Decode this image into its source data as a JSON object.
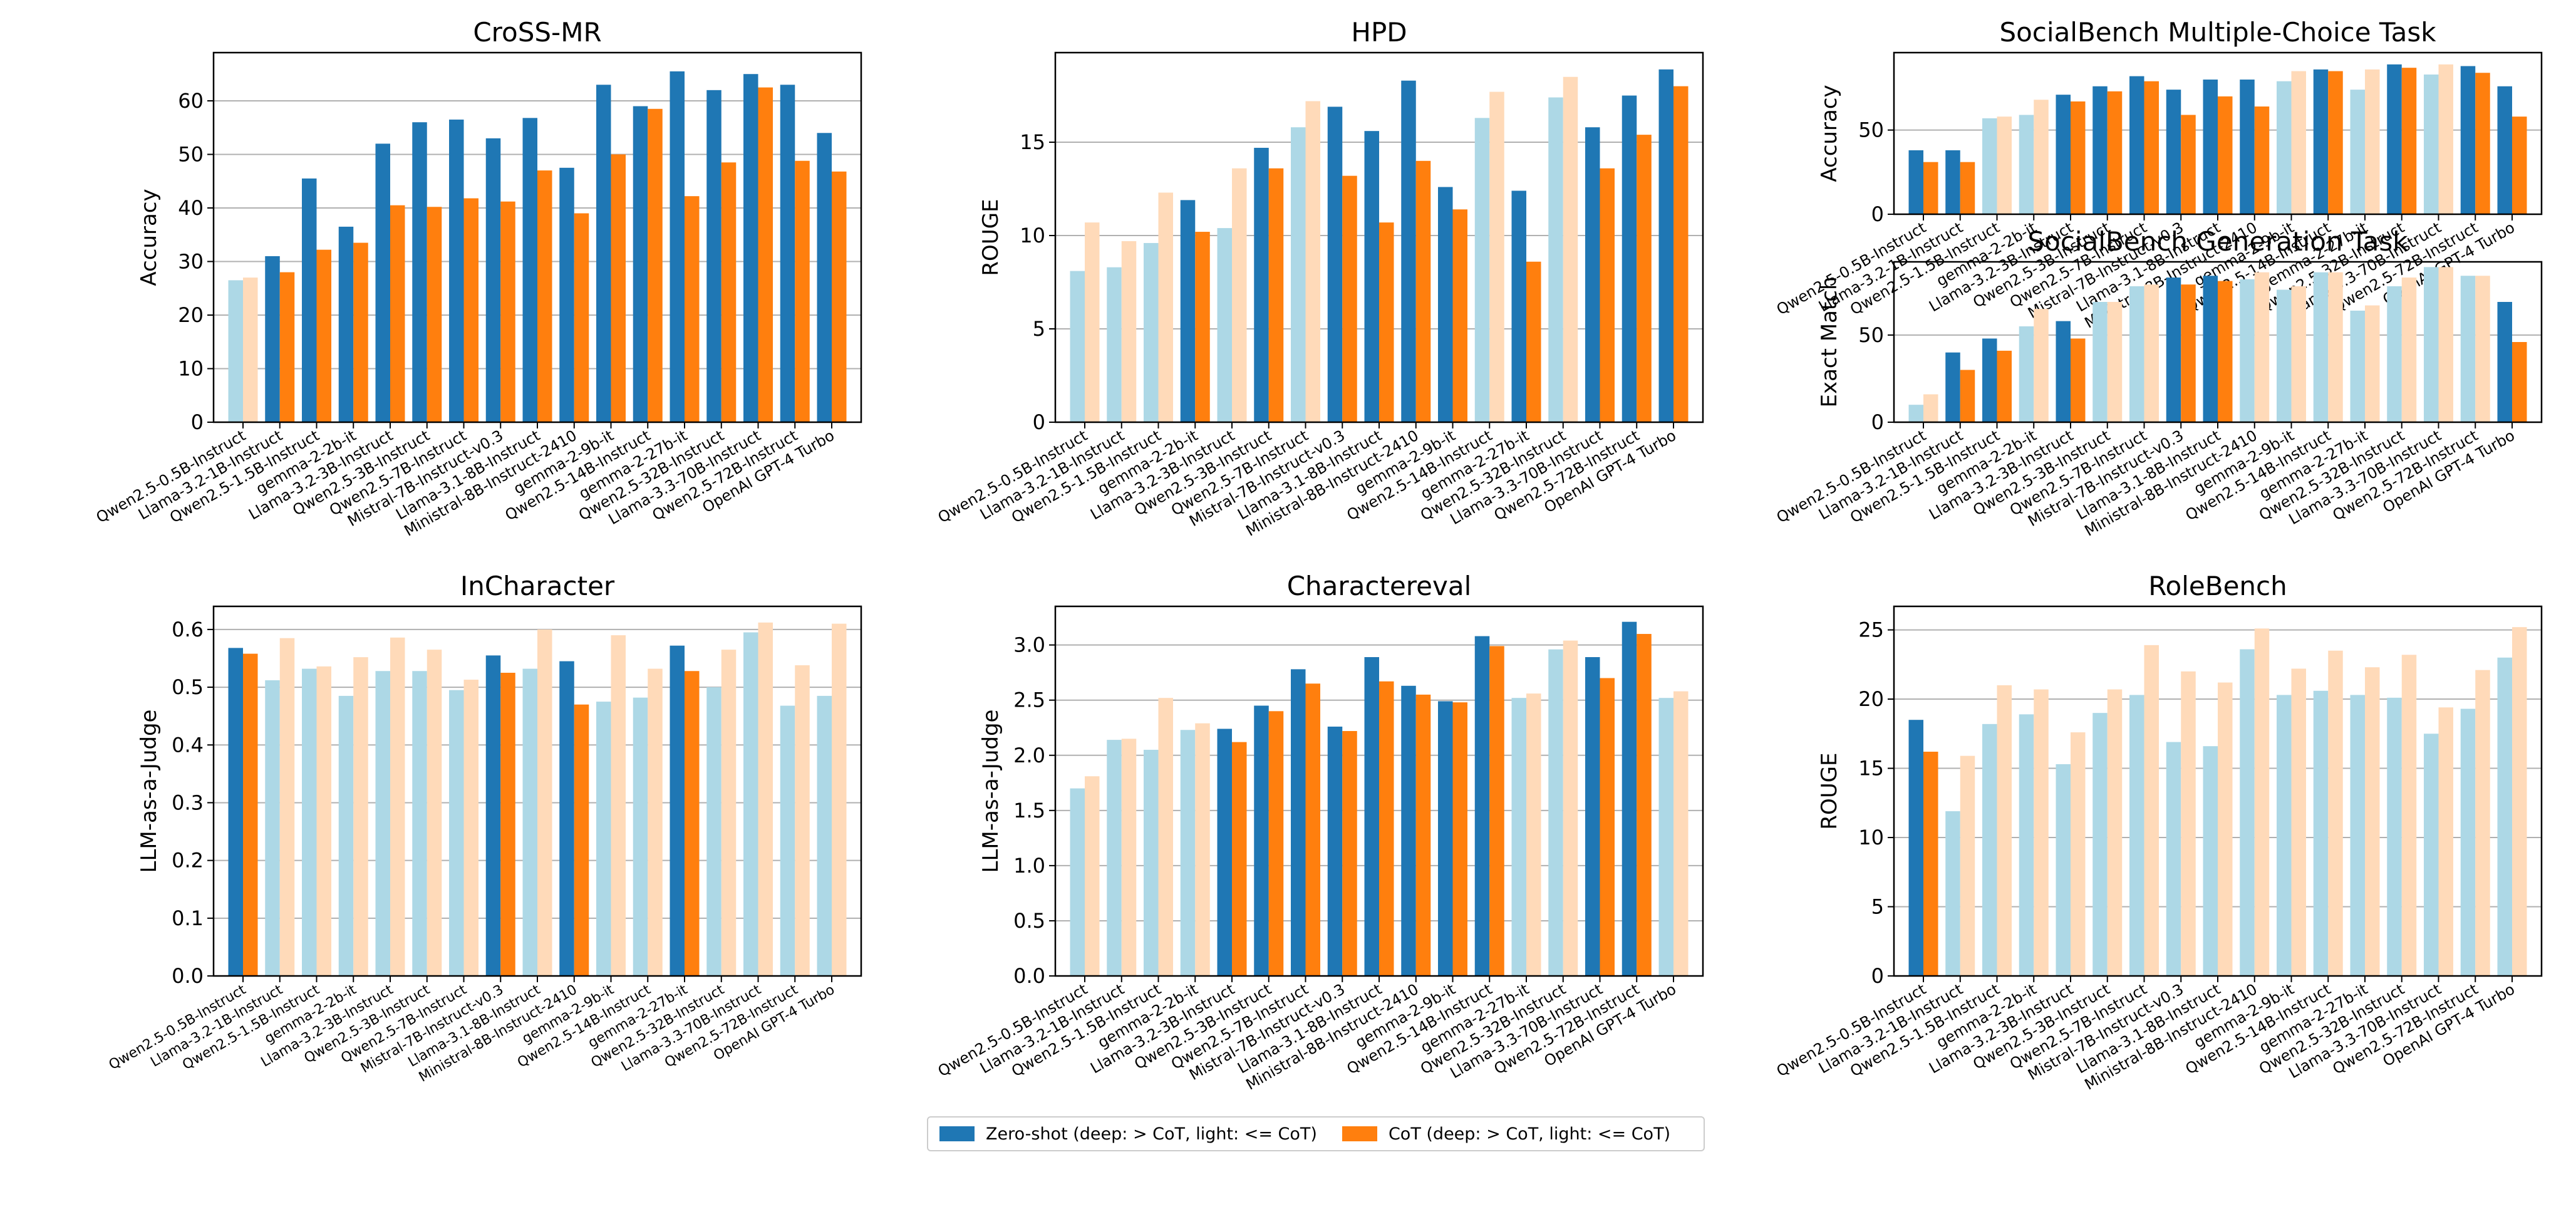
{
  "colors": {
    "zero_deep": "#1f77b4",
    "zero_light": "#add8e6",
    "cot_deep": "#ff7f0e",
    "cot_light": "#ffdab9"
  },
  "legend": {
    "zero_shot": "Zero-shot (deep: > CoT, light: <= CoT)",
    "cot": "CoT (deep: > CoT, light: <= CoT)"
  },
  "chart_data": [
    {
      "id": "cross-mr",
      "type": "bar",
      "title": "CroSS-MR",
      "ylabel": "Accuracy",
      "ylim": [
        0,
        69
      ],
      "yticks": [
        0,
        10,
        20,
        30,
        40,
        50,
        60
      ],
      "grid": true,
      "categories": [
        "Qwen2.5-0.5B-Instruct",
        "Llama-3.2-1B-Instruct",
        "Qwen2.5-1.5B-Instruct",
        "gemma-2-2b-it",
        "Llama-3.2-3B-Instruct",
        "Qwen2.5-3B-Instruct",
        "Qwen2.5-7B-Instruct",
        "Mistral-7B-Instruct-v0.3",
        "Llama-3.1-8B-Instruct",
        "Ministral-8B-Instruct-2410",
        "gemma-2-9b-it",
        "Qwen2.5-14B-Instruct",
        "gemma-2-27b-it",
        "Qwen2.5-32B-Instruct",
        "Llama-3.3-70B-Instruct",
        "Qwen2.5-72B-Instruct",
        "OpenAI GPT-4 Turbo"
      ],
      "series": [
        {
          "name": "Zero-shot",
          "values": [
            26.5,
            31,
            45.5,
            36.5,
            52,
            56,
            56.5,
            53,
            56.8,
            47.5,
            63,
            59,
            65.5,
            62,
            65,
            63,
            54
          ]
        },
        {
          "name": "CoT",
          "values": [
            27,
            28,
            32.2,
            33.5,
            40.5,
            40.2,
            41.8,
            41.2,
            47,
            39,
            50,
            58.5,
            42.2,
            48.5,
            62.5,
            48.8,
            46.8
          ]
        }
      ]
    },
    {
      "id": "hpd",
      "type": "bar",
      "title": "HPD",
      "ylabel": "ROUGE",
      "ylim": [
        0,
        19.8
      ],
      "yticks": [
        0,
        5,
        10,
        15
      ],
      "grid": true,
      "categories": [
        "Qwen2.5-0.5B-Instruct",
        "Llama-3.2-1B-Instruct",
        "Qwen2.5-1.5B-Instruct",
        "gemma-2-2b-it",
        "Llama-3.2-3B-Instruct",
        "Qwen2.5-3B-Instruct",
        "Qwen2.5-7B-Instruct",
        "Mistral-7B-Instruct-v0.3",
        "Llama-3.1-8B-Instruct",
        "Ministral-8B-Instruct-2410",
        "gemma-2-9b-it",
        "Qwen2.5-14B-Instruct",
        "gemma-2-27b-it",
        "Qwen2.5-32B-Instruct",
        "Llama-3.3-70B-Instruct",
        "Qwen2.5-72B-Instruct",
        "OpenAI GPT-4 Turbo"
      ],
      "series": [
        {
          "name": "Zero-shot",
          "values": [
            8.1,
            8.3,
            9.6,
            11.9,
            10.4,
            14.7,
            15.8,
            16.9,
            15.6,
            18.3,
            12.6,
            16.3,
            12.4,
            17.4,
            15.8,
            17.5,
            18.9
          ]
        },
        {
          "name": "CoT",
          "values": [
            10.7,
            9.7,
            12.3,
            10.2,
            13.6,
            13.6,
            17.2,
            13.2,
            10.7,
            14,
            11.4,
            17.7,
            8.6,
            18.5,
            13.6,
            15.4,
            18
          ]
        }
      ]
    },
    {
      "id": "socialbench-mc",
      "type": "bar",
      "title": "SocialBench Multiple-Choice Task",
      "ylabel": "Accuracy",
      "ylim": [
        0,
        96
      ],
      "yticks": [
        0,
        50
      ],
      "grid": true,
      "categories": [
        "Qwen2.5-0.5B-Instruct",
        "Llama-3.2-1B-Instruct",
        "Qwen2.5-1.5B-Instruct",
        "gemma-2-2b-it",
        "Llama-3.2-3B-Instruct",
        "Qwen2.5-3B-Instruct",
        "Qwen2.5-7B-Instruct",
        "Mistral-7B-Instruct-v0.3",
        "Llama-3.1-8B-Instruct",
        "Ministral-8B-Instruct-2410",
        "gemma-2-9b-it",
        "Qwen2.5-14B-Instruct",
        "gemma-2-27b-it",
        "Qwen2.5-32B-Instruct",
        "Llama-3.3-70B-Instruct",
        "Qwen2.5-72B-Instruct",
        "OpenAI GPT-4 Turbo"
      ],
      "series": [
        {
          "name": "Zero-shot",
          "values": [
            38,
            38,
            57,
            59,
            71,
            76,
            82,
            74,
            80,
            80,
            79,
            86,
            74,
            89,
            83,
            88,
            76
          ]
        },
        {
          "name": "CoT",
          "values": [
            31,
            31,
            58,
            68,
            67,
            73,
            79,
            59,
            70,
            64,
            85,
            85,
            86,
            87,
            89,
            84,
            58
          ]
        }
      ]
    },
    {
      "id": "socialbench-gen",
      "type": "bar",
      "title": "SocialBench Generation Task",
      "ylabel": "Exact Match",
      "ylim": [
        0,
        92
      ],
      "yticks": [
        0,
        50
      ],
      "grid": true,
      "categories": [
        "Qwen2.5-0.5B-Instruct",
        "Llama-3.2-1B-Instruct",
        "Qwen2.5-1.5B-Instruct",
        "gemma-2-2b-it",
        "Llama-3.2-3B-Instruct",
        "Qwen2.5-3B-Instruct",
        "Qwen2.5-7B-Instruct",
        "Mistral-7B-Instruct-v0.3",
        "Llama-3.1-8B-Instruct",
        "Ministral-8B-Instruct-2410",
        "gemma-2-9b-it",
        "Qwen2.5-14B-Instruct",
        "gemma-2-27b-it",
        "Qwen2.5-32B-Instruct",
        "Llama-3.3-70B-Instruct",
        "Qwen2.5-72B-Instruct",
        "OpenAI GPT-4 Turbo"
      ],
      "series": [
        {
          "name": "Zero-shot",
          "values": [
            10,
            40,
            48,
            55,
            58,
            69,
            78,
            83,
            84,
            82,
            76,
            86,
            64,
            78,
            89,
            84,
            69
          ]
        },
        {
          "name": "CoT",
          "values": [
            16,
            30,
            41,
            65,
            48,
            69,
            79,
            79,
            81,
            86,
            78,
            86,
            67,
            83,
            89,
            84,
            46
          ]
        }
      ]
    },
    {
      "id": "incharacter",
      "type": "bar",
      "title": "InCharacter",
      "ylabel": "LLM-as-a-Judge",
      "ylim": [
        0,
        0.64
      ],
      "yticks": [
        0.0,
        0.1,
        0.2,
        0.3,
        0.4,
        0.5,
        0.6
      ],
      "yticklabels": [
        "0.0",
        "0.1",
        "0.2",
        "0.3",
        "0.4",
        "0.5",
        "0.6"
      ],
      "grid": true,
      "categories": [
        "Qwen2.5-0.5B-Instruct",
        "Llama-3.2-1B-Instruct",
        "Qwen2.5-1.5B-Instruct",
        "gemma-2-2b-it",
        "Llama-3.2-3B-Instruct",
        "Qwen2.5-3B-Instruct",
        "Qwen2.5-7B-Instruct",
        "Mistral-7B-Instruct-v0.3",
        "Llama-3.1-8B-Instruct",
        "Ministral-8B-Instruct-2410",
        "gemma-2-9b-it",
        "Qwen2.5-14B-Instruct",
        "gemma-2-27b-it",
        "Qwen2.5-32B-Instruct",
        "Llama-3.3-70B-Instruct",
        "Qwen2.5-72B-Instruct",
        "OpenAI GPT-4 Turbo"
      ],
      "series": [
        {
          "name": "Zero-shot",
          "values": [
            0.568,
            0.512,
            0.532,
            0.485,
            0.528,
            0.528,
            0.495,
            0.555,
            0.532,
            0.545,
            0.475,
            0.482,
            0.572,
            0.5,
            0.595,
            0.468,
            0.485
          ]
        },
        {
          "name": "CoT",
          "values": [
            0.558,
            0.585,
            0.536,
            0.552,
            0.586,
            0.565,
            0.513,
            0.525,
            0.6,
            0.47,
            0.59,
            0.532,
            0.528,
            0.565,
            0.612,
            0.538,
            0.61
          ]
        }
      ]
    },
    {
      "id": "charactereval",
      "type": "bar",
      "title": "Charactereval",
      "ylabel": "LLM-as-a-Judge",
      "ylim": [
        0,
        3.35
      ],
      "yticks": [
        0.0,
        0.5,
        1.0,
        1.5,
        2.0,
        2.5,
        3.0
      ],
      "yticklabels": [
        "0.0",
        "0.5",
        "1.0",
        "1.5",
        "2.0",
        "2.5",
        "3.0"
      ],
      "grid": true,
      "categories": [
        "Qwen2.5-0.5B-Instruct",
        "Llama-3.2-1B-Instruct",
        "Qwen2.5-1.5B-Instruct",
        "gemma-2-2b-it",
        "Llama-3.2-3B-Instruct",
        "Qwen2.5-3B-Instruct",
        "Qwen2.5-7B-Instruct",
        "Mistral-7B-Instruct-v0.3",
        "Llama-3.1-8B-Instruct",
        "Ministral-8B-Instruct-2410",
        "gemma-2-9b-it",
        "Qwen2.5-14B-Instruct",
        "gemma-2-27b-it",
        "Qwen2.5-32B-Instruct",
        "Llama-3.3-70B-Instruct",
        "Qwen2.5-72B-Instruct",
        "OpenAI GPT-4 Turbo"
      ],
      "series": [
        {
          "name": "Zero-shot",
          "values": [
            1.7,
            2.14,
            2.05,
            2.23,
            2.24,
            2.45,
            2.78,
            2.26,
            2.89,
            2.63,
            2.49,
            3.08,
            2.52,
            2.96,
            2.89,
            3.21,
            2.52
          ]
        },
        {
          "name": "CoT",
          "values": [
            1.81,
            2.15,
            2.52,
            2.29,
            2.12,
            2.4,
            2.65,
            2.22,
            2.67,
            2.55,
            2.48,
            2.99,
            2.56,
            3.04,
            2.7,
            3.1,
            2.58
          ]
        }
      ]
    },
    {
      "id": "rolebench",
      "type": "bar",
      "title": "RoleBench",
      "ylabel": "ROUGE",
      "ylim": [
        0,
        26.7
      ],
      "yticks": [
        0,
        5,
        10,
        15,
        20,
        25
      ],
      "grid": true,
      "categories": [
        "Qwen2.5-0.5B-Instruct",
        "Llama-3.2-1B-Instruct",
        "Qwen2.5-1.5B-Instruct",
        "gemma-2-2b-it",
        "Llama-3.2-3B-Instruct",
        "Qwen2.5-3B-Instruct",
        "Qwen2.5-7B-Instruct",
        "Mistral-7B-Instruct-v0.3",
        "Llama-3.1-8B-Instruct",
        "Ministral-8B-Instruct-2410",
        "gemma-2-9b-it",
        "Qwen2.5-14B-Instruct",
        "gemma-2-27b-it",
        "Qwen2.5-32B-Instruct",
        "Llama-3.3-70B-Instruct",
        "Qwen2.5-72B-Instruct",
        "OpenAI GPT-4 Turbo"
      ],
      "series": [
        {
          "name": "Zero-shot",
          "values": [
            18.5,
            11.9,
            18.2,
            18.9,
            15.3,
            19.0,
            20.3,
            16.9,
            16.6,
            23.6,
            20.3,
            20.6,
            20.3,
            20.1,
            17.5,
            19.3,
            23.0
          ]
        },
        {
          "name": "CoT",
          "values": [
            16.2,
            15.9,
            21.0,
            20.7,
            17.6,
            20.7,
            23.9,
            22.0,
            21.2,
            25.1,
            22.2,
            23.5,
            22.3,
            23.2,
            19.4,
            22.1,
            25.2
          ]
        }
      ]
    }
  ]
}
